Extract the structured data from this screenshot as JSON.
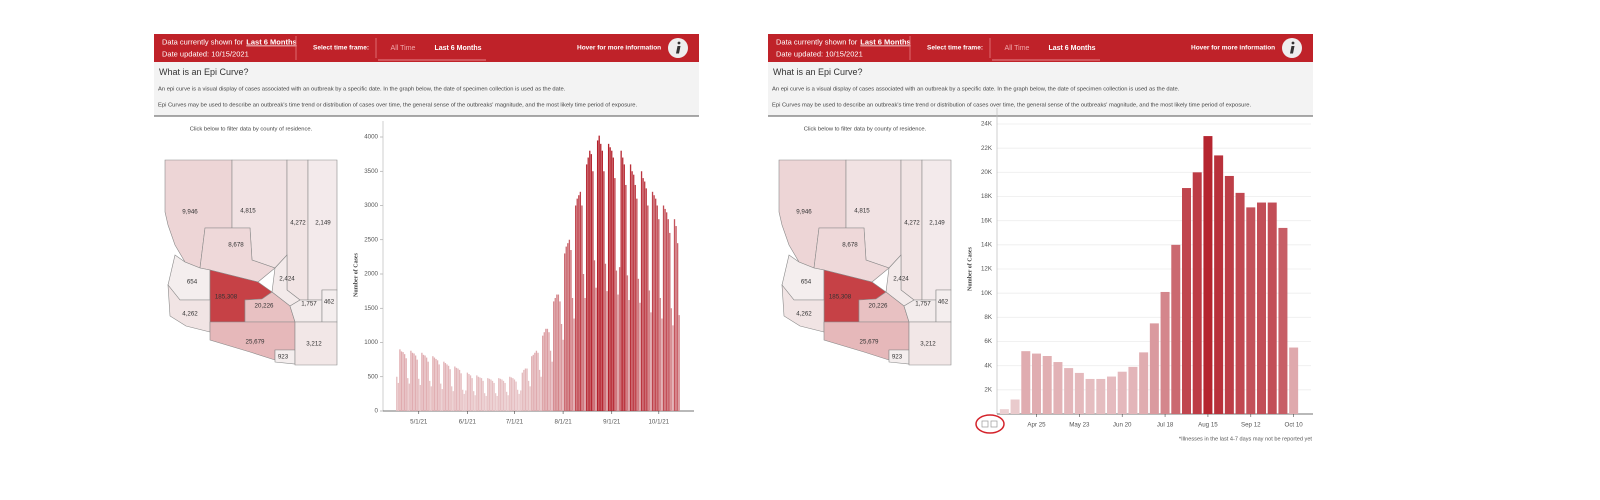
{
  "panels": [
    {
      "status_prefix": "Data currently shown for",
      "status_value": "Last 6 Months",
      "date_updated": "Date updated: 10/15/2021",
      "time_frame_label": "Select time frame:",
      "time_frame_options": [
        "All Time",
        "Last 6 Months"
      ],
      "hover_hint": "Hover for more information",
      "intro_title": "What is an Epi Curve?",
      "intro_paragraphs": [
        "An epi curve is a visual display of cases associated with an outbreak by a specific date. In the graph below, the date of specimen collection is used as the date.",
        "Epi Curves may be used to describe an outbreak's time trend or distribution of cases over time, the general sense of the outbreaks' magnitude, and the most likely time period of exposure."
      ],
      "map_prompt": "Click below to filter data by county of residence.",
      "map_colors": [
        "#f4eeee",
        "#c43a40"
      ],
      "counties": [
        {
          "value": 9946,
          "label": "9,946"
        },
        {
          "value": 4815,
          "label": "4,815"
        },
        {
          "value": 4272,
          "label": "4,272"
        },
        {
          "value": 2149,
          "label": "2,149"
        },
        {
          "value": 8678,
          "label": "8,678"
        },
        {
          "value": 654,
          "label": "654"
        },
        {
          "value": 2424,
          "label": "2,424"
        },
        {
          "value": 185308,
          "label": "185,308"
        },
        {
          "value": 20226,
          "label": "20,226"
        },
        {
          "value": 1757,
          "label": "1,757"
        },
        {
          "value": 462,
          "label": "462"
        },
        {
          "value": 4262,
          "label": "4,262"
        },
        {
          "value": 25679,
          "label": "25,679"
        },
        {
          "value": 923,
          "label": "923"
        },
        {
          "value": 3212,
          "label": "3,212"
        }
      ]
    },
    {
      "status_prefix": "Data currently shown for",
      "status_value": "Last 6 Months",
      "date_updated": "Date updated: 10/15/2021",
      "time_frame_label": "Select time frame:",
      "time_frame_options": [
        "All Time",
        "Last 6 Months"
      ],
      "hover_hint": "Hover for more information",
      "intro_title": "What is an Epi Curve?",
      "intro_paragraphs": [
        "An epi curve is a visual display of cases associated with an outbreak by a specific date. In the graph below, the date of specimen collection is used as the date.",
        "Epi Curves may be used to describe an outbreak's time trend or distribution of cases over time, the general sense of the outbreaks' magnitude, and the most likely time period of exposure."
      ],
      "map_prompt": "Click below to filter data by county of residence.",
      "map_colors": [
        "#f4eeee",
        "#c43a40"
      ],
      "counties": [
        {
          "value": 9946,
          "label": "9,946"
        },
        {
          "value": 4815,
          "label": "4,815"
        },
        {
          "value": 4272,
          "label": "4,272"
        },
        {
          "value": 2149,
          "label": "2,149"
        },
        {
          "value": 8678,
          "label": "8,678"
        },
        {
          "value": 654,
          "label": "654"
        },
        {
          "value": 2424,
          "label": "2,424"
        },
        {
          "value": 185308,
          "label": "185,308"
        },
        {
          "value": 20226,
          "label": "20,226"
        },
        {
          "value": 1757,
          "label": "1,757"
        },
        {
          "value": 462,
          "label": "462"
        },
        {
          "value": 4262,
          "label": "4,262"
        },
        {
          "value": 25679,
          "label": "25,679"
        },
        {
          "value": 923,
          "label": "923"
        },
        {
          "value": 3212,
          "label": "3,212"
        }
      ]
    }
  ],
  "chart_data": [
    {
      "type": "bar",
      "y_label": "Number of Cases",
      "colors": [
        "#ecd3d5",
        "#b31d28"
      ],
      "grid": false,
      "ylim": [
        0,
        4000
      ],
      "yticks": [
        0,
        500,
        1000,
        1500,
        2000,
        2500,
        3000,
        3500,
        4000
      ],
      "categories": [
        null,
        null,
        null,
        null,
        null,
        null,
        null,
        null,
        null,
        null,
        null,
        null,
        null,
        null,
        "5/1/21",
        null,
        null,
        null,
        null,
        null,
        null,
        null,
        null,
        null,
        null,
        null,
        null,
        null,
        null,
        null,
        null,
        null,
        null,
        null,
        null,
        null,
        null,
        null,
        null,
        null,
        null,
        null,
        null,
        null,
        null,
        "6/1/21",
        null,
        null,
        null,
        null,
        null,
        null,
        null,
        null,
        null,
        null,
        null,
        null,
        null,
        null,
        null,
        null,
        null,
        null,
        null,
        null,
        null,
        null,
        null,
        null,
        null,
        null,
        null,
        null,
        null,
        "7/1/21",
        null,
        null,
        null,
        null,
        null,
        null,
        null,
        null,
        null,
        null,
        null,
        null,
        null,
        null,
        null,
        null,
        null,
        null,
        null,
        null,
        null,
        null,
        null,
        null,
        null,
        null,
        null,
        null,
        null,
        null,
        "8/1/21",
        null,
        null,
        null,
        null,
        null,
        null,
        null,
        null,
        null,
        null,
        null,
        null,
        null,
        null,
        null,
        null,
        null,
        null,
        null,
        null,
        null,
        null,
        null,
        null,
        null,
        null,
        null,
        null,
        null,
        null,
        "9/1/21",
        null,
        null,
        null,
        null,
        null,
        null,
        null,
        null,
        null,
        null,
        null,
        null,
        null,
        null,
        null,
        null,
        null,
        null,
        null,
        null,
        null,
        null,
        null,
        null,
        null,
        null,
        null,
        null,
        null,
        "10/1/21",
        null,
        null,
        null,
        null,
        null,
        null,
        null,
        null,
        null,
        null,
        null,
        null,
        null
      ],
      "values": [
        500,
        410,
        900,
        870,
        860,
        830,
        770,
        480,
        400,
        880,
        850,
        840,
        810,
        750,
        470,
        380,
        850,
        820,
        810,
        780,
        720,
        440,
        360,
        800,
        780,
        760,
        740,
        680,
        400,
        320,
        720,
        700,
        680,
        660,
        610,
        360,
        290,
        650,
        630,
        620,
        600,
        550,
        310,
        250,
        300,
        560,
        540,
        520,
        480,
        290,
        230,
        520,
        500,
        490,
        480,
        440,
        260,
        220,
        480,
        470,
        460,
        440,
        410,
        260,
        220,
        480,
        470,
        460,
        440,
        410,
        280,
        230,
        500,
        490,
        480,
        460,
        430,
        310,
        250,
        300,
        560,
        600,
        620,
        620,
        440,
        360,
        800,
        820,
        850,
        880,
        850,
        600,
        500,
        1100,
        1150,
        1200,
        1200,
        1150,
        880,
        720,
        1600,
        1650,
        1700,
        1700,
        1600,
        1270,
        1040,
        2300,
        2400,
        2450,
        2500,
        2350,
        1650,
        1350,
        3000,
        3100,
        3150,
        3200,
        3000,
        2000,
        1650,
        3600,
        3700,
        3800,
        3750,
        3500,
        2200,
        1800,
        3950,
        4020,
        3900,
        3800,
        3500,
        2150,
        1750,
        3900,
        3850,
        3800,
        3700,
        3400,
        2050,
        1700,
        2100,
        3800,
        3700,
        3600,
        3300,
        1980,
        1620,
        3600,
        3500,
        3450,
        3300,
        3100,
        1930,
        1580,
        3500,
        3400,
        3350,
        3250,
        3000,
        1760,
        1440,
        3200,
        3150,
        3100,
        3000,
        2800,
        1650,
        1350,
        3000,
        2950,
        2900,
        2800,
        2600,
        1500,
        1250,
        2800,
        2700,
        2450,
        1400
      ]
    },
    {
      "type": "bar",
      "y_label": "Number of Cases",
      "colors": [
        "#ecd3d5",
        "#b31d28"
      ],
      "grid": true,
      "note": "*Illnesses in the last 4-7 days may not be reported yet",
      "ylim": [
        0,
        24000
      ],
      "yticks": [
        {
          "value": 2000,
          "label": "2K"
        },
        {
          "value": 4000,
          "label": "4K"
        },
        {
          "value": 6000,
          "label": "6K"
        },
        {
          "value": 8000,
          "label": "8K"
        },
        {
          "value": 10000,
          "label": "10K"
        },
        {
          "value": 12000,
          "label": "12K"
        },
        {
          "value": 14000,
          "label": "14K"
        },
        {
          "value": 16000,
          "label": "16K"
        },
        {
          "value": 18000,
          "label": "18K"
        },
        {
          "value": 20000,
          "label": "20K"
        },
        {
          "value": 22000,
          "label": "22K"
        },
        {
          "value": 24000,
          "label": "24K"
        }
      ],
      "categories": [
        null,
        null,
        null,
        "Apr 25",
        null,
        null,
        null,
        "May 23",
        null,
        null,
        null,
        "Jun 20",
        null,
        null,
        null,
        "Jul 18",
        null,
        null,
        null,
        "Aug 15",
        null,
        null,
        null,
        "Sep 12",
        null,
        null,
        null,
        "Oct 10"
      ],
      "values": [
        400,
        1200,
        5200,
        5000,
        4800,
        4300,
        3800,
        3400,
        2900,
        2900,
        3100,
        3500,
        3900,
        5100,
        7500,
        10100,
        14000,
        18700,
        20000,
        23000,
        21400,
        19700,
        18300,
        17100,
        17500,
        17500,
        15400,
        5500
      ]
    }
  ]
}
